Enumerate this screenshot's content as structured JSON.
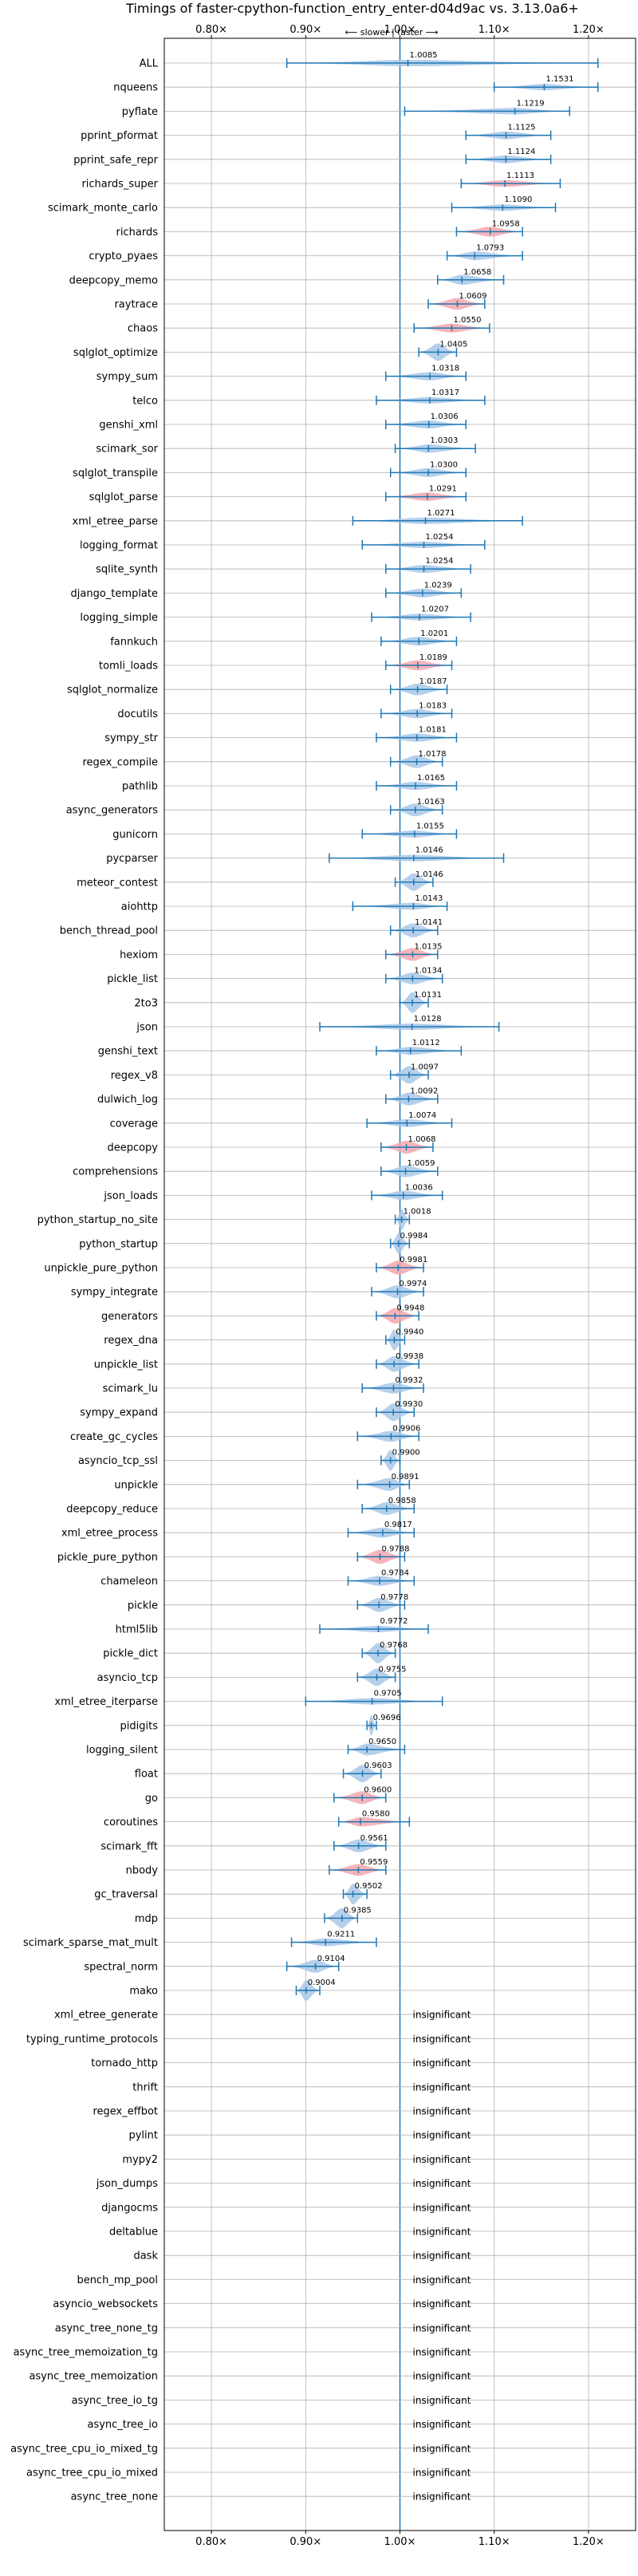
{
  "chart_data": {
    "type": "violin",
    "title": "Timings of faster-cpython-function_entry_enter-d04d9ac vs. 3.13.0a6+",
    "direction_label": "⟵ slower | faster ⟶",
    "xlim": [
      0.75,
      1.25
    ],
    "ticks": [
      0.8,
      0.9,
      1.0,
      1.1,
      1.2
    ],
    "tick_labels": [
      "0.80×",
      "0.90×",
      "1.00×",
      "1.10×",
      "1.20×"
    ],
    "grid": true,
    "colors": {
      "normal": "#a9c8e8",
      "significant": "#f4a7ad",
      "line": "#1f77b4"
    },
    "benchmarks": [
      {
        "name": "ALL",
        "value": 1.0085,
        "label": "1.0085",
        "lo": 0.88,
        "hi": 1.21,
        "sig": false
      },
      {
        "name": "nqueens",
        "value": 1.1531,
        "label": "1.1531",
        "lo": 1.1,
        "hi": 1.21,
        "sig": false
      },
      {
        "name": "pyflate",
        "value": 1.1219,
        "label": "1.1219",
        "lo": 1.005,
        "hi": 1.18,
        "sig": false
      },
      {
        "name": "pprint_pformat",
        "value": 1.1125,
        "label": "1.1125",
        "lo": 1.07,
        "hi": 1.16,
        "sig": false
      },
      {
        "name": "pprint_safe_repr",
        "value": 1.1124,
        "label": "1.1124",
        "lo": 1.07,
        "hi": 1.16,
        "sig": false
      },
      {
        "name": "richards_super",
        "value": 1.1113,
        "label": "1.1113",
        "lo": 1.065,
        "hi": 1.17,
        "sig": true
      },
      {
        "name": "scimark_monte_carlo",
        "value": 1.109,
        "label": "1.1090",
        "lo": 1.055,
        "hi": 1.165,
        "sig": false
      },
      {
        "name": "richards",
        "value": 1.0958,
        "label": "1.0958",
        "lo": 1.06,
        "hi": 1.13,
        "sig": true
      },
      {
        "name": "crypto_pyaes",
        "value": 1.0793,
        "label": "1.0793",
        "lo": 1.05,
        "hi": 1.13,
        "sig": false
      },
      {
        "name": "deepcopy_memo",
        "value": 1.0658,
        "label": "1.0658",
        "lo": 1.04,
        "hi": 1.11,
        "sig": false
      },
      {
        "name": "raytrace",
        "value": 1.0609,
        "label": "1.0609",
        "lo": 1.03,
        "hi": 1.09,
        "sig": true
      },
      {
        "name": "chaos",
        "value": 1.055,
        "label": "1.0550",
        "lo": 1.015,
        "hi": 1.095,
        "sig": true
      },
      {
        "name": "sqlglot_optimize",
        "value": 1.0405,
        "label": "1.0405",
        "lo": 1.02,
        "hi": 1.06,
        "sig": false
      },
      {
        "name": "sympy_sum",
        "value": 1.0318,
        "label": "1.0318",
        "lo": 0.985,
        "hi": 1.07,
        "sig": false
      },
      {
        "name": "telco",
        "value": 1.0317,
        "label": "1.0317",
        "lo": 0.975,
        "hi": 1.09,
        "sig": false
      },
      {
        "name": "genshi_xml",
        "value": 1.0306,
        "label": "1.0306",
        "lo": 0.985,
        "hi": 1.07,
        "sig": false
      },
      {
        "name": "scimark_sor",
        "value": 1.0303,
        "label": "1.0303",
        "lo": 0.995,
        "hi": 1.08,
        "sig": false
      },
      {
        "name": "sqlglot_transpile",
        "value": 1.03,
        "label": "1.0300",
        "lo": 0.99,
        "hi": 1.07,
        "sig": false
      },
      {
        "name": "sqlglot_parse",
        "value": 1.0291,
        "label": "1.0291",
        "lo": 0.985,
        "hi": 1.07,
        "sig": true
      },
      {
        "name": "xml_etree_parse",
        "value": 1.0271,
        "label": "1.0271",
        "lo": 0.95,
        "hi": 1.13,
        "sig": false
      },
      {
        "name": "logging_format",
        "value": 1.0254,
        "label": "1.0254",
        "lo": 0.96,
        "hi": 1.09,
        "sig": false
      },
      {
        "name": "sqlite_synth",
        "value": 1.0254,
        "label": "1.0254",
        "lo": 0.985,
        "hi": 1.075,
        "sig": false
      },
      {
        "name": "django_template",
        "value": 1.0239,
        "label": "1.0239",
        "lo": 0.985,
        "hi": 1.065,
        "sig": false
      },
      {
        "name": "logging_simple",
        "value": 1.0207,
        "label": "1.0207",
        "lo": 0.97,
        "hi": 1.075,
        "sig": false
      },
      {
        "name": "fannkuch",
        "value": 1.0201,
        "label": "1.0201",
        "lo": 0.98,
        "hi": 1.06,
        "sig": false
      },
      {
        "name": "tomli_loads",
        "value": 1.0189,
        "label": "1.0189",
        "lo": 0.985,
        "hi": 1.055,
        "sig": true
      },
      {
        "name": "sqlglot_normalize",
        "value": 1.0187,
        "label": "1.0187",
        "lo": 0.99,
        "hi": 1.05,
        "sig": false
      },
      {
        "name": "docutils",
        "value": 1.0183,
        "label": "1.0183",
        "lo": 0.98,
        "hi": 1.055,
        "sig": false
      },
      {
        "name": "sympy_str",
        "value": 1.0181,
        "label": "1.0181",
        "lo": 0.975,
        "hi": 1.06,
        "sig": false
      },
      {
        "name": "regex_compile",
        "value": 1.0178,
        "label": "1.0178",
        "lo": 0.99,
        "hi": 1.045,
        "sig": false
      },
      {
        "name": "pathlib",
        "value": 1.0165,
        "label": "1.0165",
        "lo": 0.975,
        "hi": 1.06,
        "sig": false
      },
      {
        "name": "async_generators",
        "value": 1.0163,
        "label": "1.0163",
        "lo": 0.99,
        "hi": 1.045,
        "sig": false
      },
      {
        "name": "gunicorn",
        "value": 1.0155,
        "label": "1.0155",
        "lo": 0.96,
        "hi": 1.06,
        "sig": false
      },
      {
        "name": "pycparser",
        "value": 1.0146,
        "label": "1.0146",
        "lo": 0.925,
        "hi": 1.11,
        "sig": false
      },
      {
        "name": "meteor_contest",
        "value": 1.0146,
        "label": "1.0146",
        "lo": 0.995,
        "hi": 1.035,
        "sig": false
      },
      {
        "name": "aiohttp",
        "value": 1.0143,
        "label": "1.0143",
        "lo": 0.95,
        "hi": 1.05,
        "sig": false
      },
      {
        "name": "bench_thread_pool",
        "value": 1.0141,
        "label": "1.0141",
        "lo": 0.99,
        "hi": 1.04,
        "sig": false
      },
      {
        "name": "hexiom",
        "value": 1.0135,
        "label": "1.0135",
        "lo": 0.985,
        "hi": 1.04,
        "sig": true
      },
      {
        "name": "pickle_list",
        "value": 1.0134,
        "label": "1.0134",
        "lo": 0.985,
        "hi": 1.045,
        "sig": false
      },
      {
        "name": "2to3",
        "value": 1.0131,
        "label": "1.0131",
        "lo": 1.0,
        "hi": 1.03,
        "sig": false
      },
      {
        "name": "json",
        "value": 1.0128,
        "label": "1.0128",
        "lo": 0.915,
        "hi": 1.105,
        "sig": false
      },
      {
        "name": "genshi_text",
        "value": 1.0112,
        "label": "1.0112",
        "lo": 0.975,
        "hi": 1.065,
        "sig": false
      },
      {
        "name": "regex_v8",
        "value": 1.0097,
        "label": "1.0097",
        "lo": 0.99,
        "hi": 1.03,
        "sig": false
      },
      {
        "name": "dulwich_log",
        "value": 1.0092,
        "label": "1.0092",
        "lo": 0.985,
        "hi": 1.04,
        "sig": false
      },
      {
        "name": "coverage",
        "value": 1.0074,
        "label": "1.0074",
        "lo": 0.965,
        "hi": 1.055,
        "sig": false
      },
      {
        "name": "deepcopy",
        "value": 1.0068,
        "label": "1.0068",
        "lo": 0.98,
        "hi": 1.035,
        "sig": true
      },
      {
        "name": "comprehensions",
        "value": 1.0059,
        "label": "1.0059",
        "lo": 0.98,
        "hi": 1.04,
        "sig": false
      },
      {
        "name": "json_loads",
        "value": 1.0036,
        "label": "1.0036",
        "lo": 0.97,
        "hi": 1.045,
        "sig": false
      },
      {
        "name": "python_startup_no_site",
        "value": 1.0018,
        "label": "1.0018",
        "lo": 0.995,
        "hi": 1.01,
        "sig": false
      },
      {
        "name": "python_startup",
        "value": 0.9984,
        "label": "0.9984",
        "lo": 0.99,
        "hi": 1.01,
        "sig": false
      },
      {
        "name": "unpickle_pure_python",
        "value": 0.9981,
        "label": "0.9981",
        "lo": 0.975,
        "hi": 1.025,
        "sig": true
      },
      {
        "name": "sympy_integrate",
        "value": 0.9974,
        "label": "0.9974",
        "lo": 0.97,
        "hi": 1.025,
        "sig": false
      },
      {
        "name": "generators",
        "value": 0.9948,
        "label": "0.9948",
        "lo": 0.975,
        "hi": 1.02,
        "sig": true
      },
      {
        "name": "regex_dna",
        "value": 0.994,
        "label": "0.9940",
        "lo": 0.985,
        "hi": 1.005,
        "sig": false
      },
      {
        "name": "unpickle_list",
        "value": 0.9938,
        "label": "0.9938",
        "lo": 0.975,
        "hi": 1.02,
        "sig": false
      },
      {
        "name": "scimark_lu",
        "value": 0.9932,
        "label": "0.9932",
        "lo": 0.96,
        "hi": 1.025,
        "sig": false
      },
      {
        "name": "sympy_expand",
        "value": 0.993,
        "label": "0.9930",
        "lo": 0.975,
        "hi": 1.015,
        "sig": false
      },
      {
        "name": "create_gc_cycles",
        "value": 0.9906,
        "label": "0.9906",
        "lo": 0.955,
        "hi": 1.02,
        "sig": false
      },
      {
        "name": "asyncio_tcp_ssl",
        "value": 0.99,
        "label": "0.9900",
        "lo": 0.98,
        "hi": 1.0,
        "sig": false
      },
      {
        "name": "unpickle",
        "value": 0.9891,
        "label": "0.9891",
        "lo": 0.955,
        "hi": 1.01,
        "sig": false
      },
      {
        "name": "deepcopy_reduce",
        "value": 0.9858,
        "label": "0.9858",
        "lo": 0.96,
        "hi": 1.015,
        "sig": false
      },
      {
        "name": "xml_etree_process",
        "value": 0.9817,
        "label": "0.9817",
        "lo": 0.945,
        "hi": 1.015,
        "sig": false
      },
      {
        "name": "pickle_pure_python",
        "value": 0.9788,
        "label": "0.9788",
        "lo": 0.955,
        "hi": 1.005,
        "sig": true
      },
      {
        "name": "chameleon",
        "value": 0.9784,
        "label": "0.9784",
        "lo": 0.945,
        "hi": 1.015,
        "sig": false
      },
      {
        "name": "pickle",
        "value": 0.9778,
        "label": "0.9778",
        "lo": 0.955,
        "hi": 1.005,
        "sig": false
      },
      {
        "name": "html5lib",
        "value": 0.9772,
        "label": "0.9772",
        "lo": 0.915,
        "hi": 1.03,
        "sig": false
      },
      {
        "name": "pickle_dict",
        "value": 0.9768,
        "label": "0.9768",
        "lo": 0.96,
        "hi": 0.995,
        "sig": false
      },
      {
        "name": "asyncio_tcp",
        "value": 0.9755,
        "label": "0.9755",
        "lo": 0.955,
        "hi": 0.995,
        "sig": false
      },
      {
        "name": "xml_etree_iterparse",
        "value": 0.9705,
        "label": "0.9705",
        "lo": 0.9,
        "hi": 1.045,
        "sig": false
      },
      {
        "name": "pidigits",
        "value": 0.9696,
        "label": "0.9696",
        "lo": 0.965,
        "hi": 0.975,
        "sig": false
      },
      {
        "name": "logging_silent",
        "value": 0.965,
        "label": "0.9650",
        "lo": 0.945,
        "hi": 1.005,
        "sig": false
      },
      {
        "name": "float",
        "value": 0.9603,
        "label": "0.9603",
        "lo": 0.94,
        "hi": 0.98,
        "sig": false
      },
      {
        "name": "go",
        "value": 0.96,
        "label": "0.9600",
        "lo": 0.93,
        "hi": 0.985,
        "sig": true
      },
      {
        "name": "coroutines",
        "value": 0.958,
        "label": "0.9580",
        "lo": 0.935,
        "hi": 1.01,
        "sig": true
      },
      {
        "name": "scimark_fft",
        "value": 0.9561,
        "label": "0.9561",
        "lo": 0.93,
        "hi": 0.985,
        "sig": false
      },
      {
        "name": "nbody",
        "value": 0.9559,
        "label": "0.9559",
        "lo": 0.925,
        "hi": 0.985,
        "sig": true
      },
      {
        "name": "gc_traversal",
        "value": 0.9502,
        "label": "0.9502",
        "lo": 0.94,
        "hi": 0.965,
        "sig": false
      },
      {
        "name": "mdp",
        "value": 0.9385,
        "label": "0.9385",
        "lo": 0.92,
        "hi": 0.955,
        "sig": false
      },
      {
        "name": "scimark_sparse_mat_mult",
        "value": 0.9211,
        "label": "0.9211",
        "lo": 0.885,
        "hi": 0.975,
        "sig": false
      },
      {
        "name": "spectral_norm",
        "value": 0.9104,
        "label": "0.9104",
        "lo": 0.88,
        "hi": 0.935,
        "sig": false
      },
      {
        "name": "mako",
        "value": 0.9004,
        "label": "0.9004",
        "lo": 0.89,
        "hi": 0.915,
        "sig": false
      },
      {
        "name": "xml_etree_generate",
        "label": "insignificant"
      },
      {
        "name": "typing_runtime_protocols",
        "label": "insignificant"
      },
      {
        "name": "tornado_http",
        "label": "insignificant"
      },
      {
        "name": "thrift",
        "label": "insignificant"
      },
      {
        "name": "regex_effbot",
        "label": "insignificant"
      },
      {
        "name": "pylint",
        "label": "insignificant"
      },
      {
        "name": "mypy2",
        "label": "insignificant"
      },
      {
        "name": "json_dumps",
        "label": "insignificant"
      },
      {
        "name": "djangocms",
        "label": "insignificant"
      },
      {
        "name": "deltablue",
        "label": "insignificant"
      },
      {
        "name": "dask",
        "label": "insignificant"
      },
      {
        "name": "bench_mp_pool",
        "label": "insignificant"
      },
      {
        "name": "asyncio_websockets",
        "label": "insignificant"
      },
      {
        "name": "async_tree_none_tg",
        "label": "insignificant"
      },
      {
        "name": "async_tree_memoization_tg",
        "label": "insignificant"
      },
      {
        "name": "async_tree_memoization",
        "label": "insignificant"
      },
      {
        "name": "async_tree_io_tg",
        "label": "insignificant"
      },
      {
        "name": "async_tree_io",
        "label": "insignificant"
      },
      {
        "name": "async_tree_cpu_io_mixed_tg",
        "label": "insignificant"
      },
      {
        "name": "async_tree_cpu_io_mixed",
        "label": "insignificant"
      },
      {
        "name": "async_tree_none",
        "label": "insignificant"
      }
    ]
  }
}
